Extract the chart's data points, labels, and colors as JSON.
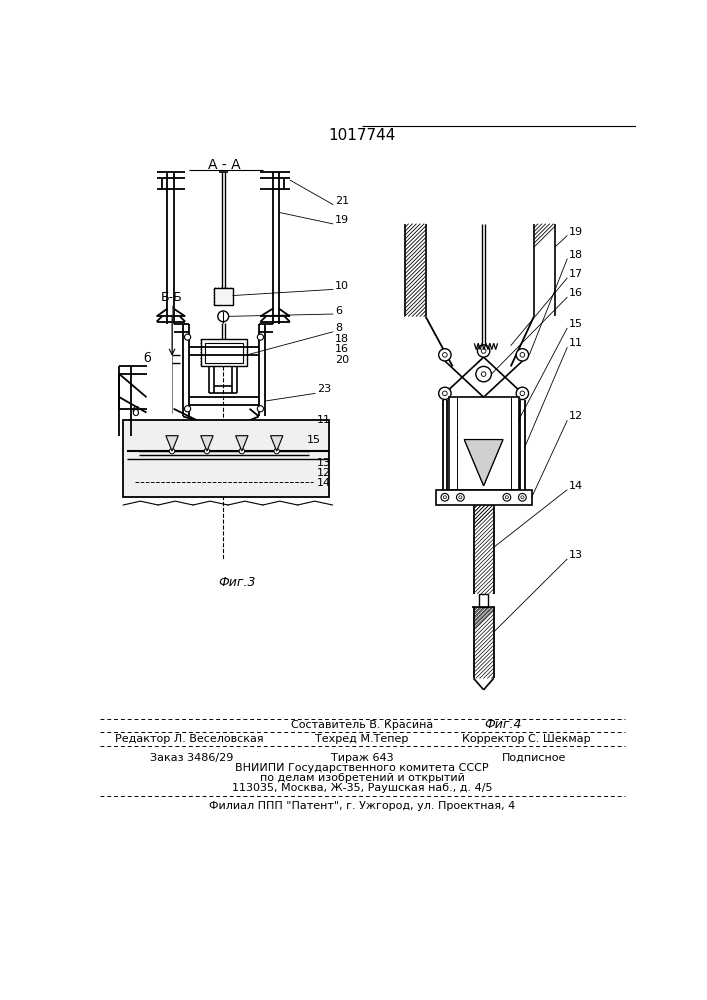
{
  "patent_number": "1017744",
  "fig3_label": "Фиг.3",
  "fig4_label": "Фиг.4",
  "section_AA": "А - А",
  "section_BB": "Б-Б",
  "b_label": "б",
  "editor_line": "Редактор Л. Веселовская",
  "composer_line": "Составитель В. Красина",
  "techred_line": "Техред М.Тепер",
  "corrector_line": "Корректор С. Шекмар",
  "order_line": "Заказ 3486/29",
  "tirage_line": "Тираж 643",
  "podpisnoe_line": "Подписное",
  "vniip_line1": "ВНИИПИ Государственного комитета СССР",
  "vniip_line2": "по делам изобретений и открытий",
  "vniip_line3": "113035, Москва, Ж-35, Раушская наб., д. 4/5",
  "filial_line": "Филиал ППП \"Патент\", г. Ужгород, ул. Проектная, 4",
  "bg_color": "#ffffff",
  "line_color": "#000000",
  "figsize": [
    7.07,
    10.0
  ],
  "dpi": 100
}
